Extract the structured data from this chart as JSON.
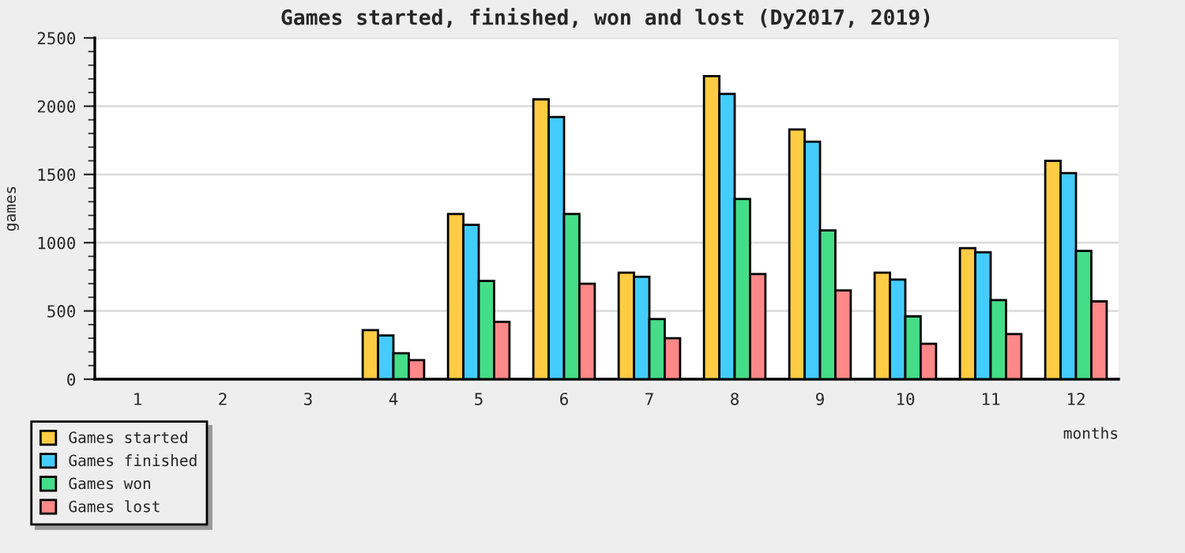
{
  "chart_data": {
    "type": "bar",
    "title": "Games started, finished, won and lost (Dy2017, 2019)",
    "xlabel": "months",
    "ylabel": "games",
    "categories": [
      "1",
      "2",
      "3",
      "4",
      "5",
      "6",
      "7",
      "8",
      "9",
      "10",
      "11",
      "12"
    ],
    "series": [
      {
        "name": "Games started",
        "color": "#ffcc44",
        "values": [
          null,
          null,
          null,
          360,
          1210,
          2050,
          780,
          2220,
          1830,
          780,
          960,
          1600
        ]
      },
      {
        "name": "Games finished",
        "color": "#44ccff",
        "values": [
          null,
          null,
          null,
          320,
          1130,
          1920,
          750,
          2090,
          1740,
          730,
          930,
          1510
        ]
      },
      {
        "name": "Games won",
        "color": "#44dd88",
        "values": [
          null,
          null,
          null,
          190,
          720,
          1210,
          440,
          1320,
          1090,
          460,
          580,
          940
        ]
      },
      {
        "name": "Games lost",
        "color": "#ff8888",
        "values": [
          null,
          null,
          null,
          140,
          420,
          700,
          300,
          770,
          650,
          260,
          330,
          570
        ]
      }
    ],
    "ylim": [
      0,
      2500
    ],
    "yticks": [
      0,
      500,
      1000,
      1500,
      2000,
      2500
    ],
    "grid": "y",
    "legend": "bottom left"
  }
}
